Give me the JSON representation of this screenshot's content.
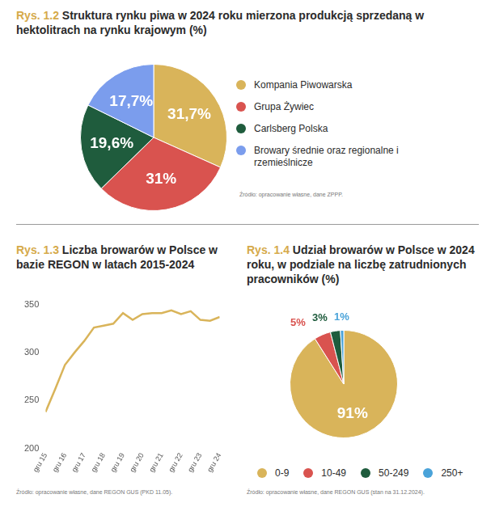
{
  "chart_data": [
    {
      "type": "pie",
      "figure_label": "Rys. 1.2",
      "title": "Struktura rynku piwa w 2024 roku mierzona produkcją sprzedaną w hektolitrach na rynku krajowym (%)",
      "categories": [
        "Kompania Piwowarska",
        "Grupa Żywiec",
        "Carlsberg Polska",
        "Browary średnie oraz regionalne i rzemieślnicze"
      ],
      "values": [
        31.7,
        31,
        19.6,
        17.7
      ],
      "value_labels": [
        "31,7%",
        "31%",
        "19,6%",
        "17,7%"
      ],
      "colors": [
        "#d9b45a",
        "#d9534f",
        "#1f5c3d",
        "#7b9ded"
      ],
      "data_labels": true,
      "legend": "right",
      "source": "Źródło: opracowanie własne, dane ZPPP."
    },
    {
      "type": "line",
      "figure_label": "Rys. 1.3",
      "title": "Liczba browarów w Polsce w bazie REGON w latach 2015-2024",
      "categories": [
        "gru 15",
        null,
        "gru 16",
        null,
        "gru 17",
        null,
        "gru 18",
        null,
        "gru 19",
        null,
        "gru 20",
        null,
        "gru 21",
        null,
        "gru 22",
        null,
        "gru 23",
        null,
        "gru 24"
      ],
      "values": [
        238,
        262,
        287,
        300,
        312,
        326,
        328,
        330,
        341,
        334,
        340,
        341,
        341,
        344,
        340,
        343,
        334,
        333,
        337
      ],
      "color": "#d9b45a",
      "ylim": [
        200,
        350
      ],
      "yticks": [
        200,
        250,
        300,
        350
      ],
      "grid": false,
      "source": "Źródło: opracowanie własne, dane REGON GUS (PKD 11.05)."
    },
    {
      "type": "pie",
      "figure_label": "Rys. 1.4",
      "title": "Udział browarów w Polsce w 2024 roku, w podziale na liczbę zatrudnionych pracowników (%)",
      "categories": [
        "0-9",
        "10-49",
        "50-249",
        "250+"
      ],
      "values": [
        91,
        5,
        3,
        1
      ],
      "value_labels": [
        "91%",
        "5%",
        "3%",
        "1%"
      ],
      "colors": [
        "#d9b45a",
        "#d9534f",
        "#1f5c3d",
        "#4aa3d9"
      ],
      "data_labels": true,
      "legend": "bottom",
      "source": "Źródło: opracowanie własne, dane REGON GUS (stan na 31.12.2024)."
    }
  ]
}
